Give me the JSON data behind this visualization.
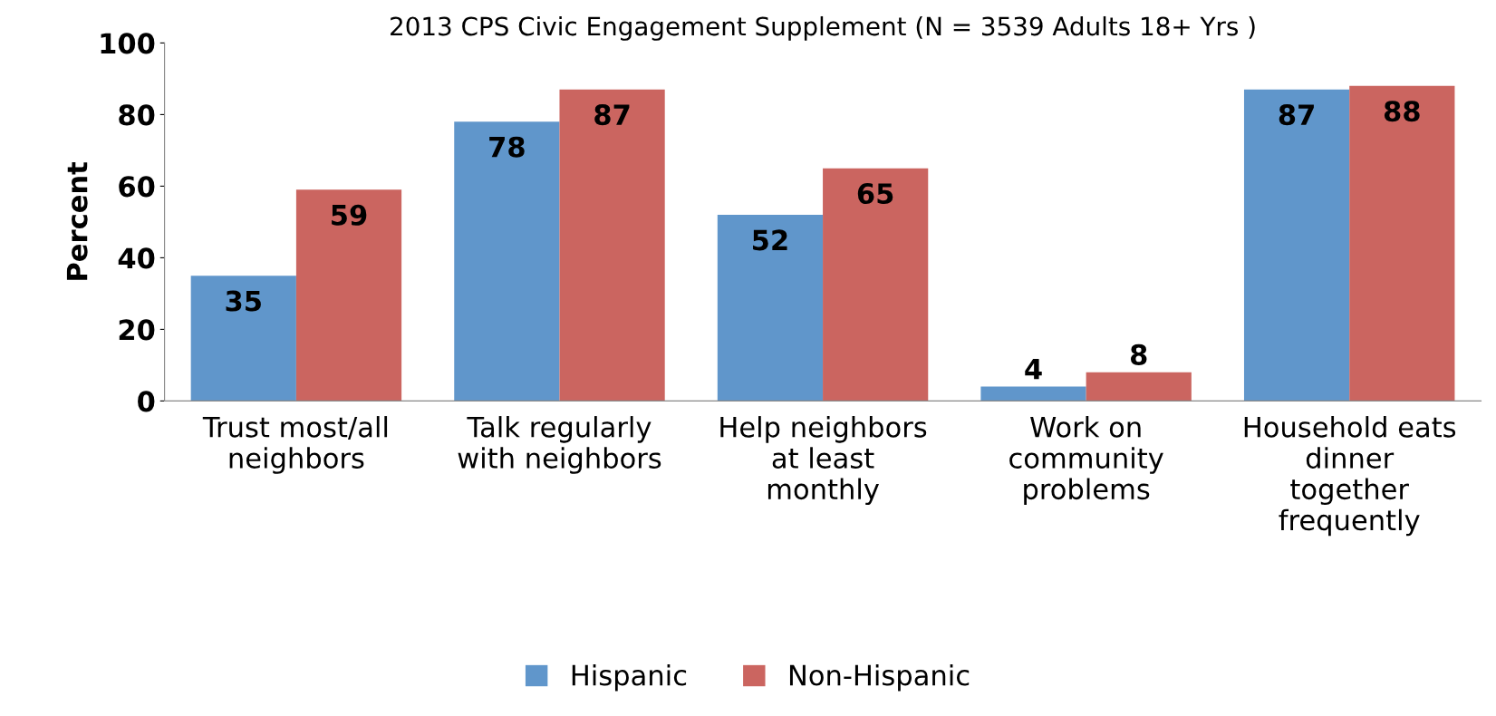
{
  "chart_data": {
    "type": "bar",
    "title": "2013 CPS Civic Engagement Supplement (N = 3539 Adults 18+ Yrs )",
    "categories": [
      "Trust most/all neighbors",
      "Talk regularly with neighbors",
      "Help neighbors at least monthly",
      "Work on community problems",
      "Household eats dinner together frequently"
    ],
    "series": [
      {
        "name": "Hispanic",
        "color": "#6096cb",
        "values": [
          35,
          78,
          52,
          4,
          87
        ]
      },
      {
        "name": "Non-Hispanic",
        "color": "#cb6560",
        "values": [
          59,
          87,
          65,
          8,
          88
        ]
      }
    ],
    "ylabel": "Percent",
    "ylim": [
      0,
      100
    ],
    "yticks": [
      0,
      20,
      40,
      60,
      80,
      100
    ],
    "data_labels": true,
    "grid": false,
    "legend": "bottom"
  }
}
